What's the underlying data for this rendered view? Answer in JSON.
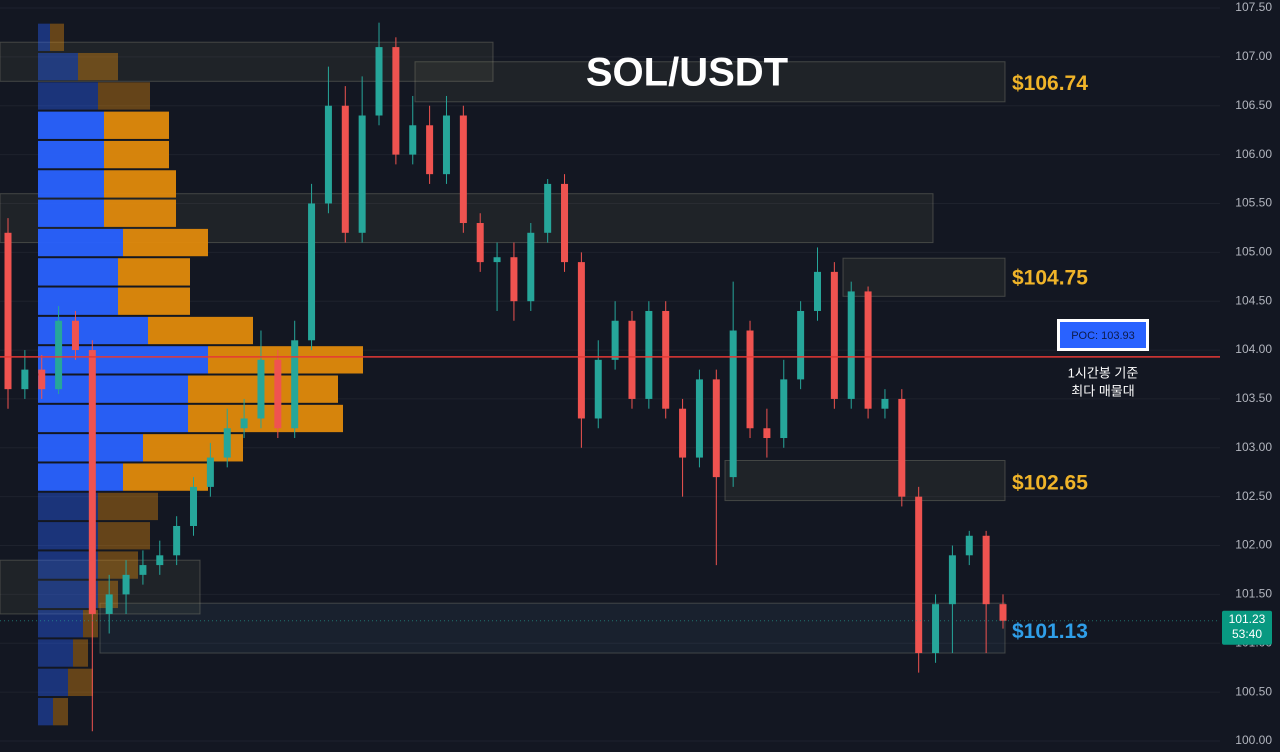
{
  "chart_data": {
    "type": "candlestick",
    "title": "SOL/USDT",
    "ylim": [
      100.0,
      107.5
    ],
    "yticks": [
      {
        "value": 100.0,
        "label": "100.00"
      },
      {
        "value": 100.5,
        "label": "100.50"
      },
      {
        "value": 101.0,
        "label": "101.00"
      },
      {
        "value": 101.5,
        "label": "101.50"
      },
      {
        "value": 102.0,
        "label": "102.00"
      },
      {
        "value": 102.5,
        "label": "102.50"
      },
      {
        "value": 103.0,
        "label": "103.00"
      },
      {
        "value": 103.5,
        "label": "103.50"
      },
      {
        "value": 104.0,
        "label": "104.00"
      },
      {
        "value": 104.5,
        "label": "104.50"
      },
      {
        "value": 105.0,
        "label": "105.00"
      },
      {
        "value": 105.5,
        "label": "105.50"
      },
      {
        "value": 106.0,
        "label": "106.00"
      },
      {
        "value": 106.5,
        "label": "106.50"
      },
      {
        "value": 107.0,
        "label": "107.00"
      },
      {
        "value": 107.5,
        "label": "107.50"
      }
    ],
    "up_color": "#26a69a",
    "down_color": "#ef5350",
    "open": [
      105.2,
      103.6,
      103.8,
      103.6,
      104.3,
      104.0,
      101.3,
      101.5,
      101.7,
      101.8,
      101.9,
      102.2,
      102.6,
      102.9,
      103.2,
      103.3,
      103.9,
      103.2,
      104.1,
      105.5,
      106.5,
      105.2,
      106.4,
      107.1,
      106.0,
      106.3,
      105.8,
      106.4,
      105.3,
      104.9,
      104.95,
      104.5,
      105.2,
      105.7,
      104.9,
      103.3,
      103.9,
      104.3,
      103.5,
      104.4,
      103.4,
      102.9,
      103.7,
      102.7,
      104.2,
      103.2,
      103.1,
      103.7,
      104.4,
      104.8,
      103.5,
      104.6,
      103.4,
      103.5,
      102.5,
      100.9,
      101.4,
      101.9,
      102.1,
      101.4
    ],
    "high": [
      105.35,
      104.0,
      103.95,
      104.45,
      104.4,
      104.1,
      101.7,
      101.85,
      101.95,
      102.05,
      102.3,
      102.7,
      103.05,
      103.4,
      103.5,
      104.2,
      104.0,
      104.3,
      105.7,
      106.9,
      106.7,
      106.8,
      107.35,
      107.2,
      106.6,
      106.5,
      106.6,
      106.5,
      105.4,
      105.1,
      105.1,
      105.3,
      105.75,
      105.8,
      105.0,
      104.1,
      104.5,
      104.4,
      104.5,
      104.5,
      103.5,
      103.8,
      103.8,
      104.7,
      104.3,
      103.4,
      103.9,
      104.5,
      105.05,
      104.9,
      104.7,
      104.65,
      103.6,
      103.6,
      102.6,
      101.5,
      102.0,
      102.15,
      102.15,
      101.5
    ],
    "low": [
      103.4,
      103.5,
      103.5,
      103.55,
      103.9,
      100.1,
      101.1,
      101.3,
      101.6,
      101.7,
      101.8,
      102.1,
      102.5,
      102.8,
      103.1,
      103.2,
      103.1,
      103.1,
      104.0,
      105.4,
      105.1,
      105.1,
      106.3,
      105.9,
      105.9,
      105.7,
      105.7,
      105.2,
      104.8,
      104.4,
      104.3,
      104.4,
      105.1,
      104.8,
      103.0,
      103.2,
      103.8,
      103.4,
      103.4,
      103.3,
      102.5,
      102.8,
      101.8,
      102.6,
      103.1,
      102.9,
      103.0,
      103.6,
      104.3,
      103.4,
      103.4,
      103.3,
      103.3,
      102.4,
      100.7,
      100.8,
      100.9,
      101.8,
      100.9,
      101.15
    ],
    "close": [
      103.6,
      103.8,
      103.6,
      104.3,
      104.0,
      101.3,
      101.5,
      101.7,
      101.8,
      101.9,
      102.2,
      102.6,
      102.9,
      103.2,
      103.3,
      103.9,
      103.2,
      104.1,
      105.5,
      106.5,
      105.2,
      106.4,
      107.1,
      106.0,
      106.3,
      105.8,
      106.4,
      105.3,
      104.9,
      104.95,
      104.5,
      105.2,
      105.7,
      104.9,
      103.3,
      103.9,
      104.3,
      103.5,
      104.4,
      103.4,
      102.9,
      103.7,
      102.7,
      104.2,
      103.2,
      103.1,
      103.7,
      104.4,
      104.8,
      103.5,
      104.6,
      103.4,
      103.5,
      102.5,
      100.9,
      101.4,
      101.9,
      102.1,
      101.4,
      101.23
    ],
    "zones": [
      {
        "label": "$106.74",
        "value": 106.74,
        "high": 106.95,
        "low": 106.54,
        "color": "#f0b429"
      },
      {
        "label": "$104.75",
        "value": 104.75,
        "high": 104.94,
        "low": 104.55,
        "color": "#f0b429"
      },
      {
        "label": "$102.65",
        "value": 102.65,
        "high": 102.87,
        "low": 102.46,
        "color": "#f0b429"
      },
      {
        "label": "$101.13",
        "value": 101.13,
        "high": 101.41,
        "low": 100.9,
        "color": "#2f9ee8"
      }
    ],
    "extra_zones": [
      {
        "high": 107.15,
        "low": 106.75
      },
      {
        "high": 105.6,
        "low": 105.1
      },
      {
        "high": 101.85,
        "low": 101.3
      }
    ],
    "poc": {
      "value": 103.93,
      "label": "POC: 103.93",
      "note": [
        "1시간봉 기준",
        "최다 매물대"
      ]
    },
    "current_price": {
      "value": 101.23,
      "label": "101.23",
      "timer": "53:40"
    },
    "volume_profile": {
      "prices": [
        107.2,
        106.9,
        106.6,
        106.3,
        106.0,
        105.7,
        105.4,
        105.1,
        104.8,
        104.5,
        104.2,
        103.9,
        103.6,
        103.3,
        103.0,
        102.7,
        102.4,
        102.1,
        101.8,
        101.5,
        101.2,
        100.9,
        100.6,
        100.3
      ],
      "buy": [
        12,
        40,
        60,
        66,
        66,
        66,
        66,
        85,
        80,
        80,
        110,
        170,
        150,
        150,
        105,
        85,
        60,
        60,
        60,
        60,
        45,
        35,
        30,
        15
      ],
      "sell": [
        14,
        40,
        52,
        65,
        65,
        72,
        72,
        85,
        72,
        72,
        105,
        155,
        150,
        155,
        100,
        85,
        60,
        52,
        40,
        20,
        15,
        15,
        25,
        15
      ],
      "value_area": [
        102.6,
        106.5
      ]
    }
  }
}
